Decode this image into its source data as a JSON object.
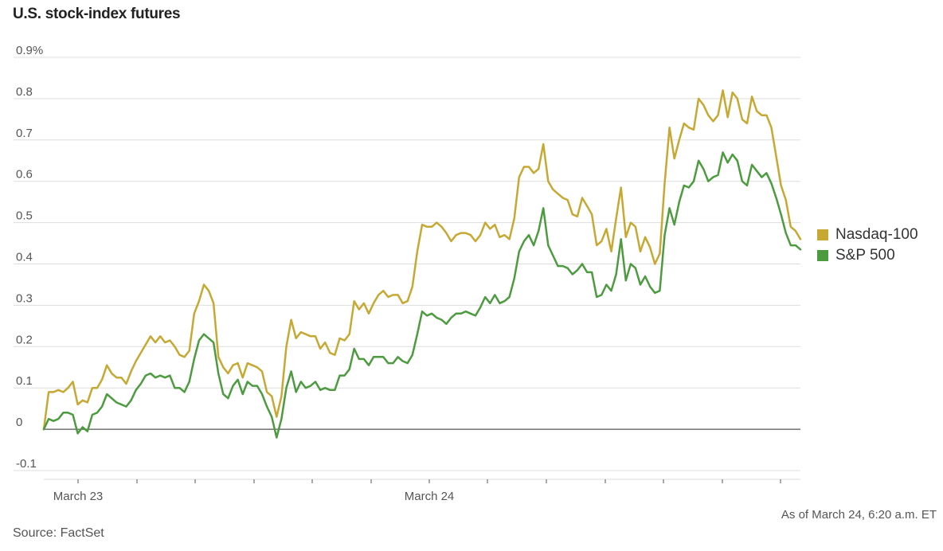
{
  "header": {
    "title": "U.S. stock-index futures"
  },
  "footer": {
    "as_of": "As of March 24, 6:20 a.m. ET",
    "source": "Source: FactSet"
  },
  "colors": {
    "nasdaq": "#c6a832",
    "sp500": "#4c9b3f",
    "grid": "#dddddd",
    "zero": "#555555"
  },
  "chart_data": {
    "type": "line",
    "title": "U.S. stock-index futures",
    "xlabel": "",
    "ylabel": "",
    "ylim": [
      -0.1,
      0.9
    ],
    "y_ticks": [
      {
        "value": 0.9,
        "label": "0.9%"
      },
      {
        "value": 0.8,
        "label": "0.8"
      },
      {
        "value": 0.7,
        "label": "0.7"
      },
      {
        "value": 0.6,
        "label": "0.6"
      },
      {
        "value": 0.5,
        "label": "0.5"
      },
      {
        "value": 0.4,
        "label": "0.4"
      },
      {
        "value": 0.3,
        "label": "0.3"
      },
      {
        "value": 0.2,
        "label": "0.2"
      },
      {
        "value": 0.1,
        "label": "0.1"
      },
      {
        "value": 0,
        "label": "0"
      },
      {
        "value": -0.1,
        "label": "-0.1"
      }
    ],
    "x_tick_labels": [
      "March 23",
      "March 24"
    ],
    "grid": true,
    "legend_position": "right",
    "series": [
      {
        "name": "Nasdaq-100",
        "values": [
          0,
          0.09,
          0.09,
          0.095,
          0.09,
          0.1,
          0.115,
          0.06,
          0.07,
          0.065,
          0.1,
          0.1,
          0.12,
          0.155,
          0.135,
          0.125,
          0.125,
          0.11,
          0.14,
          0.165,
          0.185,
          0.205,
          0.225,
          0.21,
          0.225,
          0.21,
          0.215,
          0.2,
          0.18,
          0.175,
          0.19,
          0.28,
          0.31,
          0.35,
          0.335,
          0.305,
          0.175,
          0.15,
          0.135,
          0.155,
          0.16,
          0.125,
          0.16,
          0.155,
          0.15,
          0.14,
          0.09,
          0.08,
          0.03,
          0.08,
          0.2,
          0.265,
          0.22,
          0.235,
          0.23,
          0.225,
          0.225,
          0.195,
          0.21,
          0.185,
          0.18,
          0.22,
          0.215,
          0.23,
          0.31,
          0.29,
          0.305,
          0.28,
          0.305,
          0.325,
          0.335,
          0.32,
          0.325,
          0.325,
          0.305,
          0.31,
          0.345,
          0.43,
          0.495,
          0.49,
          0.49,
          0.5,
          0.49,
          0.475,
          0.455,
          0.47,
          0.475,
          0.475,
          0.47,
          0.455,
          0.47,
          0.5,
          0.485,
          0.495,
          0.465,
          0.47,
          0.46,
          0.51,
          0.61,
          0.635,
          0.635,
          0.62,
          0.63,
          0.69,
          0.6,
          0.58,
          0.57,
          0.56,
          0.555,
          0.52,
          0.515,
          0.56,
          0.54,
          0.52,
          0.445,
          0.455,
          0.485,
          0.43,
          0.51,
          0.585,
          0.465,
          0.5,
          0.49,
          0.43,
          0.465,
          0.44,
          0.4,
          0.425,
          0.595,
          0.73,
          0.655,
          0.7,
          0.74,
          0.73,
          0.725,
          0.8,
          0.785,
          0.76,
          0.745,
          0.76,
          0.82,
          0.755,
          0.815,
          0.8,
          0.75,
          0.74,
          0.805,
          0.77,
          0.76,
          0.76,
          0.73,
          0.66,
          0.59,
          0.555,
          0.49,
          0.48,
          0.46
        ]
      },
      {
        "name": "S&P 500",
        "values": [
          0,
          0.025,
          0.02,
          0.025,
          0.04,
          0.04,
          0.035,
          -0.01,
          0.005,
          -0.005,
          0.035,
          0.04,
          0.055,
          0.085,
          0.075,
          0.065,
          0.06,
          0.055,
          0.07,
          0.095,
          0.11,
          0.13,
          0.135,
          0.125,
          0.13,
          0.125,
          0.13,
          0.1,
          0.1,
          0.09,
          0.115,
          0.17,
          0.215,
          0.23,
          0.22,
          0.21,
          0.135,
          0.085,
          0.075,
          0.105,
          0.12,
          0.085,
          0.115,
          0.105,
          0.105,
          0.085,
          0.055,
          0.03,
          -0.02,
          0.025,
          0.1,
          0.14,
          0.09,
          0.115,
          0.1,
          0.105,
          0.115,
          0.095,
          0.1,
          0.095,
          0.095,
          0.13,
          0.13,
          0.145,
          0.195,
          0.17,
          0.17,
          0.155,
          0.175,
          0.175,
          0.175,
          0.16,
          0.16,
          0.175,
          0.165,
          0.16,
          0.18,
          0.23,
          0.285,
          0.275,
          0.28,
          0.27,
          0.265,
          0.255,
          0.27,
          0.28,
          0.28,
          0.285,
          0.28,
          0.275,
          0.295,
          0.32,
          0.305,
          0.325,
          0.305,
          0.31,
          0.32,
          0.365,
          0.43,
          0.455,
          0.47,
          0.445,
          0.48,
          0.535,
          0.445,
          0.42,
          0.395,
          0.395,
          0.39,
          0.375,
          0.385,
          0.4,
          0.38,
          0.38,
          0.32,
          0.325,
          0.35,
          0.335,
          0.375,
          0.46,
          0.36,
          0.4,
          0.39,
          0.35,
          0.37,
          0.345,
          0.33,
          0.335,
          0.47,
          0.535,
          0.495,
          0.55,
          0.59,
          0.585,
          0.6,
          0.65,
          0.63,
          0.6,
          0.61,
          0.615,
          0.67,
          0.645,
          0.665,
          0.65,
          0.6,
          0.59,
          0.64,
          0.625,
          0.61,
          0.62,
          0.595,
          0.56,
          0.52,
          0.475,
          0.445,
          0.445,
          0.435
        ]
      }
    ]
  }
}
